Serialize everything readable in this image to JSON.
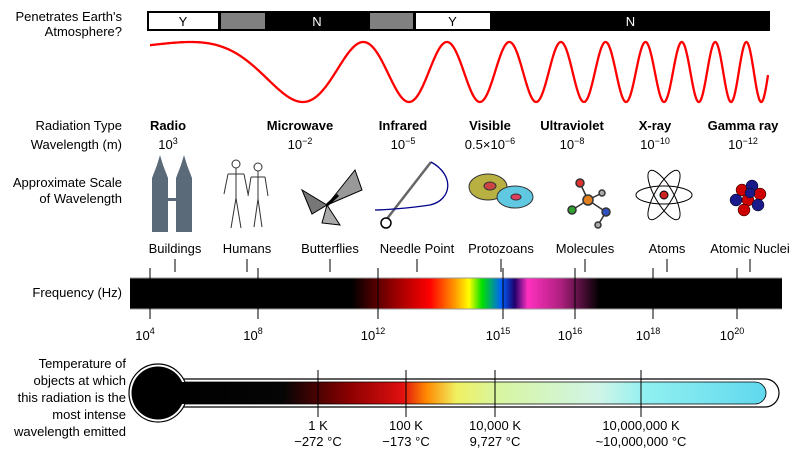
{
  "atmosphere": {
    "label_line1": "Penetrates Earth's",
    "label_line2": "Atmosphere?",
    "segments": [
      {
        "text": "Y",
        "kind": "yes"
      },
      {
        "text": "",
        "kind": "partial"
      },
      {
        "text": "N",
        "kind": "no"
      },
      {
        "text": "",
        "kind": "partial"
      },
      {
        "text": "Y",
        "kind": "yes"
      },
      {
        "text": "N",
        "kind": "no"
      }
    ]
  },
  "row_labels": {
    "radiation_type": "Radiation Type",
    "wavelength": "Wavelength (m)",
    "scale_line1": "Approximate Scale",
    "scale_line2": "of Wavelength",
    "frequency": "Frequency (Hz)",
    "temp_lines": [
      "Temperature of",
      "objects at which",
      "this radiation is the",
      "most intense",
      "wavelength emitted"
    ]
  },
  "radiation_types": [
    {
      "name": "Radio",
      "base": "10",
      "exp": "3"
    },
    {
      "name": "Microwave",
      "base": "10",
      "exp": "−2"
    },
    {
      "name": "Infrared",
      "base": "10",
      "exp": "−5"
    },
    {
      "name": "Visible",
      "base": "0.5×10",
      "exp": "−6"
    },
    {
      "name": "Ultraviolet",
      "base": "10",
      "exp": "−8"
    },
    {
      "name": "X-ray",
      "base": "10",
      "exp": "−10"
    },
    {
      "name": "Gamma ray",
      "base": "10",
      "exp": "−12"
    }
  ],
  "scales": [
    {
      "label": "Buildings",
      "icon": "buildings-icon"
    },
    {
      "label": "Humans",
      "icon": "humans-icon"
    },
    {
      "label": "Butterflies",
      "icon": "butterfly-icon"
    },
    {
      "label": "Needle Point",
      "icon": "needle-icon"
    },
    {
      "label": "Protozoans",
      "icon": "protozoa-icon"
    },
    {
      "label": "Molecules",
      "icon": "molecule-icon"
    },
    {
      "label": "Atoms",
      "icon": "atom-icon"
    },
    {
      "label": "Atomic Nuclei",
      "icon": "nucleus-icon"
    }
  ],
  "frequency_ticks": [
    {
      "base": "10",
      "exp": "4"
    },
    {
      "base": "10",
      "exp": "8"
    },
    {
      "base": "10",
      "exp": "12"
    },
    {
      "base": "10",
      "exp": "15"
    },
    {
      "base": "10",
      "exp": "16"
    },
    {
      "base": "10",
      "exp": "18"
    },
    {
      "base": "10",
      "exp": "20"
    }
  ],
  "temperatures": [
    {
      "kelvin": "1 K",
      "celsius": "−272 °C"
    },
    {
      "kelvin": "100 K",
      "celsius": "−173 °C"
    },
    {
      "kelvin": "10,000 K",
      "celsius": "9,727 °C"
    },
    {
      "kelvin": "10,000,000 K",
      "celsius": "~10,000,000 °C"
    }
  ],
  "colors": {
    "wave": "#ff0000",
    "yes": "#ffffff",
    "partial": "#808080",
    "no": "#000000"
  }
}
